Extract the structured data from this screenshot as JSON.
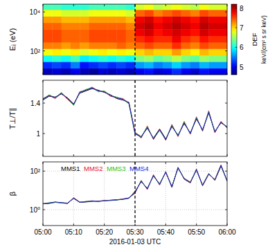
{
  "chart_data": [
    {
      "type": "heatmap",
      "y_label": "Eᵢ (eV)",
      "xlim": [
        0,
        60
      ],
      "xticks": [
        0,
        10,
        20,
        30,
        40,
        50,
        60
      ],
      "ylim": [
        6,
        25000
      ],
      "yticks": [
        {
          "value": 100,
          "label": "10²"
        },
        {
          "value": 10000,
          "label": "10⁴"
        }
      ],
      "log": "y",
      "tick_labels": "y",
      "grid": false,
      "event_time": 30,
      "x_edges": [
        0,
        3,
        6,
        9,
        12,
        15,
        18,
        21,
        24,
        27,
        30,
        33,
        36,
        39,
        42,
        45,
        48,
        51,
        54,
        57,
        60
      ],
      "y_edges": [
        6,
        13,
        28,
        60,
        130,
        280,
        600,
        1300,
        2800,
        6000,
        13000,
        25000
      ],
      "cells": [
        [
          4.8,
          4.9,
          4.8,
          5.0,
          4.8,
          4.7,
          4.9,
          4.8,
          4.9,
          4.8,
          5.0,
          5.1,
          4.9,
          5.0,
          5.2,
          5.0,
          4.9,
          5.1,
          5.0,
          5.0
        ],
        [
          5.2,
          5.3,
          5.2,
          5.5,
          5.1,
          5.2,
          5.3,
          5.2,
          5.3,
          5.2,
          5.6,
          5.7,
          5.5,
          5.6,
          5.8,
          5.6,
          5.5,
          5.7,
          5.6,
          5.6
        ],
        [
          6.0,
          6.1,
          6.0,
          6.2,
          5.9,
          6.0,
          6.1,
          6.0,
          6.1,
          6.0,
          6.4,
          6.5,
          6.3,
          6.4,
          6.6,
          6.4,
          6.3,
          6.5,
          6.4,
          6.4
        ],
        [
          6.8,
          6.9,
          6.8,
          6.9,
          6.7,
          6.8,
          6.9,
          6.8,
          6.9,
          6.8,
          7.0,
          7.1,
          7.0,
          7.0,
          7.2,
          7.0,
          6.9,
          7.1,
          7.0,
          7.0
        ],
        [
          7.3,
          7.3,
          7.2,
          7.3,
          7.2,
          7.3,
          7.3,
          7.3,
          7.4,
          7.3,
          7.4,
          7.5,
          7.4,
          7.4,
          7.6,
          7.4,
          7.3,
          7.5,
          7.4,
          7.4
        ],
        [
          7.5,
          7.5,
          7.4,
          7.4,
          7.4,
          7.5,
          7.5,
          7.5,
          7.5,
          7.4,
          7.6,
          7.7,
          7.6,
          7.6,
          7.8,
          7.6,
          7.5,
          7.7,
          7.6,
          7.6
        ],
        [
          7.5,
          7.5,
          7.4,
          7.4,
          7.4,
          7.5,
          7.5,
          7.5,
          7.5,
          7.4,
          7.8,
          7.9,
          7.7,
          7.8,
          7.9,
          7.8,
          7.7,
          7.9,
          7.8,
          7.8
        ],
        [
          7.4,
          7.4,
          7.3,
          7.3,
          7.3,
          7.4,
          7.4,
          7.4,
          7.4,
          7.3,
          7.9,
          8.0,
          7.8,
          7.9,
          8.0,
          7.9,
          7.8,
          8.0,
          7.9,
          7.9
        ],
        [
          7.2,
          7.2,
          7.1,
          7.1,
          7.1,
          7.2,
          7.2,
          7.2,
          7.2,
          7.1,
          7.8,
          7.9,
          7.7,
          7.8,
          7.9,
          7.8,
          7.7,
          7.9,
          7.8,
          7.8
        ],
        [
          6.8,
          6.8,
          6.7,
          6.7,
          6.7,
          6.8,
          6.8,
          6.8,
          6.8,
          6.7,
          7.4,
          7.5,
          7.3,
          7.4,
          7.5,
          7.4,
          7.3,
          7.5,
          7.4,
          7.4
        ],
        [
          6.2,
          6.2,
          6.1,
          6.1,
          6.1,
          6.2,
          6.2,
          6.2,
          6.2,
          6.1,
          6.7,
          6.8,
          6.6,
          6.7,
          6.8,
          6.7,
          6.6,
          6.8,
          6.7,
          6.7
        ]
      ],
      "colorbar_range": [
        4.6,
        8.2
      ],
      "colorbar_ticks": [
        5,
        6,
        7,
        8
      ],
      "colorbar_label": "DEF",
      "colorbar_units": "keV/(cm² s sr keV)"
    },
    {
      "type": "line",
      "y_label": "T⊥/T∥",
      "xlim": [
        0,
        60
      ],
      "xticks": [
        0,
        10,
        20,
        30,
        40,
        50,
        60
      ],
      "ylim": [
        0.7,
        1.7
      ],
      "yticks": [
        1,
        1.4
      ],
      "tick_labels": "y",
      "grid": false,
      "event_time": 30,
      "x": [
        0,
        2,
        4,
        6,
        8,
        10,
        12,
        14,
        16,
        18,
        20,
        22,
        24,
        26,
        28,
        30,
        32,
        34,
        36,
        38,
        40,
        42,
        44,
        46,
        48,
        50,
        52,
        54,
        56,
        58,
        60
      ],
      "series": [
        {
          "name": "MMS1",
          "color": "#000000",
          "values": [
            1.44,
            1.49,
            1.48,
            1.52,
            1.47,
            1.39,
            1.53,
            1.56,
            1.59,
            1.57,
            1.54,
            1.51,
            1.46,
            1.44,
            1.41,
            1.01,
            0.96,
            1.07,
            0.94,
            1.06,
            0.93,
            1.09,
            0.98,
            1.13,
            1.01,
            1.19,
            1.05,
            1.27,
            1.03,
            1.14,
            1.09
          ]
        },
        {
          "name": "MMS2",
          "color": "#e8141e",
          "values": [
            1.46,
            1.5,
            1.46,
            1.53,
            1.45,
            1.38,
            1.55,
            1.57,
            1.61,
            1.56,
            1.55,
            1.49,
            1.47,
            1.46,
            1.4,
            1.02,
            0.94,
            1.1,
            0.92,
            1.06,
            0.91,
            1.12,
            0.96,
            1.16,
            0.99,
            1.22,
            1.03,
            1.3,
            1.01,
            1.16,
            1.07
          ]
        },
        {
          "name": "MMS3",
          "color": "#22c422",
          "values": [
            1.45,
            1.51,
            1.47,
            1.54,
            1.46,
            1.37,
            1.54,
            1.58,
            1.6,
            1.55,
            1.56,
            1.5,
            1.48,
            1.45,
            1.39,
            0.99,
            0.96,
            1.09,
            0.93,
            1.04,
            0.92,
            1.11,
            0.97,
            1.15,
            1.0,
            1.21,
            1.04,
            1.29,
            1.02,
            1.15,
            1.08
          ]
        },
        {
          "name": "MMS4",
          "color": "#1a1adb",
          "values": [
            1.45,
            1.5,
            1.47,
            1.53,
            1.46,
            1.38,
            1.54,
            1.57,
            1.6,
            1.56,
            1.55,
            1.5,
            1.47,
            1.45,
            1.4,
            1.0,
            0.95,
            1.08,
            0.93,
            1.05,
            0.92,
            1.1,
            0.97,
            1.14,
            1.0,
            1.2,
            1.04,
            1.28,
            1.02,
            1.15,
            1.08
          ]
        }
      ]
    },
    {
      "type": "line",
      "y_label": "β",
      "x_label": "2016-01-03 UTC",
      "xlim": [
        0,
        60
      ],
      "xticks": [
        {
          "value": 0,
          "label": "05:00"
        },
        {
          "value": 10,
          "label": "05:10"
        },
        {
          "value": 20,
          "label": "05:20"
        },
        {
          "value": 30,
          "label": "05:30"
        },
        {
          "value": 40,
          "label": "05:40"
        },
        {
          "value": 50,
          "label": "05:50"
        },
        {
          "value": 60,
          "label": "06:00"
        }
      ],
      "ylim": [
        0.15,
        300
      ],
      "yticks": [
        {
          "value": 1,
          "label": "10⁰"
        },
        {
          "value": 100,
          "label": "10²"
        }
      ],
      "log": "y",
      "grid": true,
      "legend": "top-left",
      "event_time": 30,
      "x": [
        0,
        2,
        4,
        6,
        8,
        10,
        12,
        14,
        16,
        18,
        20,
        22,
        24,
        26,
        28,
        30,
        32,
        34,
        36,
        38,
        40,
        42,
        44,
        46,
        48,
        50,
        52,
        54,
        56,
        58,
        60
      ],
      "series": [
        {
          "name": "MMS1",
          "color": "#000000",
          "values": [
            2.0,
            2.1,
            2.4,
            2.3,
            2.2,
            3.8,
            2.4,
            2.5,
            2.7,
            2.8,
            2.9,
            3.1,
            3.3,
            3.4,
            3.9,
            9,
            28,
            13,
            55,
            22,
            85,
            16,
            140,
            42,
            27,
            110,
            19,
            75,
            33,
            180,
            32
          ]
        },
        {
          "name": "MMS2",
          "color": "#e8141e",
          "values": [
            2.1,
            2.2,
            2.5,
            2.2,
            2.1,
            4.2,
            2.5,
            2.6,
            2.9,
            2.7,
            3.0,
            3.0,
            3.2,
            3.6,
            4.1,
            7,
            33,
            11,
            65,
            19,
            95,
            14,
            160,
            38,
            24,
            130,
            17,
            68,
            37,
            210,
            29
          ]
        },
        {
          "name": "MMS3",
          "color": "#22c422",
          "values": [
            2.0,
            2.3,
            2.4,
            2.3,
            2.1,
            3.9,
            2.4,
            2.7,
            2.8,
            2.6,
            2.9,
            3.1,
            3.1,
            3.5,
            4.0,
            8,
            31,
            12,
            58,
            21,
            88,
            15,
            155,
            41,
            26,
            118,
            18,
            72,
            34,
            195,
            31
          ]
        },
        {
          "name": "MMS4",
          "color": "#1a1adb",
          "values": [
            2.0,
            2.2,
            2.5,
            2.3,
            2.1,
            4.0,
            2.4,
            2.6,
            2.8,
            2.7,
            2.9,
            3.0,
            3.2,
            3.5,
            4.0,
            8,
            30,
            12,
            60,
            20,
            90,
            15,
            150,
            40,
            25,
            120,
            18,
            70,
            35,
            200,
            30
          ]
        }
      ]
    }
  ]
}
